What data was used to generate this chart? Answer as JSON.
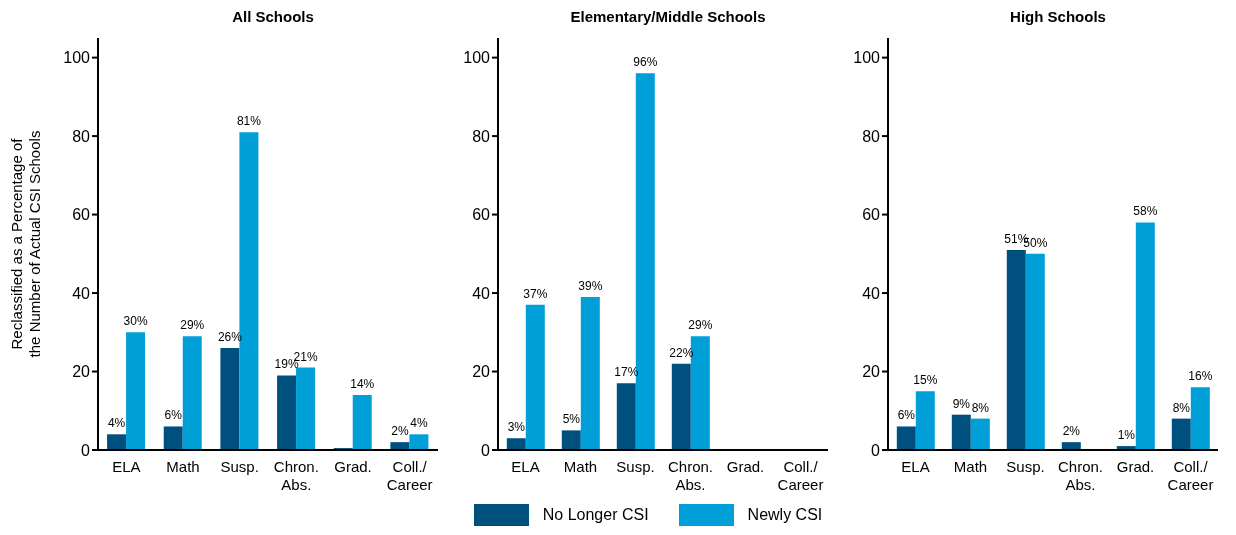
{
  "chart_data": [
    {
      "type": "bar",
      "title": "All Schools",
      "ylabel": "Reclassified as a Percentage of\nthe Number of Actual CSI Schools",
      "categories": [
        "ELA",
        "Math",
        "Susp.",
        "Chron.\nAbs.",
        "Grad.",
        "Coll./\nCareer"
      ],
      "ylim": [
        0,
        105
      ],
      "yticks": [
        0,
        20,
        40,
        60,
        80,
        100
      ],
      "legend": "bottom",
      "series": [
        {
          "name": "No Longer CSI",
          "color": "#00507f",
          "values": [
            4,
            6,
            26,
            19,
            0.5,
            2
          ],
          "value_labels": [
            "4%",
            "6%",
            "26%",
            "19%",
            null,
            "2%"
          ]
        },
        {
          "name": "Newly CSI",
          "color": "#009fd7",
          "values": [
            30,
            29,
            81,
            21,
            14,
            4
          ],
          "value_labels": [
            "30%",
            "29%",
            "81%",
            "21%",
            "14%",
            "4%"
          ]
        }
      ]
    },
    {
      "type": "bar",
      "title": "Elementary/Middle Schools",
      "categories": [
        "ELA",
        "Math",
        "Susp.",
        "Chron.\nAbs.",
        "Grad.",
        "Coll./\nCareer"
      ],
      "ylim": [
        0,
        105
      ],
      "yticks": [
        0,
        20,
        40,
        60,
        80,
        100
      ],
      "series": [
        {
          "color": "#00507f",
          "values": [
            3,
            5,
            17,
            22,
            null,
            null
          ],
          "value_labels": [
            "3%",
            "5%",
            "17%",
            "22%",
            null,
            null
          ]
        },
        {
          "color": "#009fd7",
          "values": [
            37,
            39,
            96,
            29,
            null,
            null
          ],
          "value_labels": [
            "37%",
            "39%",
            "96%",
            "29%",
            null,
            null
          ]
        }
      ]
    },
    {
      "type": "bar",
      "title": "High Schools",
      "categories": [
        "ELA",
        "Math",
        "Susp.",
        "Chron.\nAbs.",
        "Grad.",
        "Coll./\nCareer"
      ],
      "ylim": [
        0,
        105
      ],
      "yticks": [
        0,
        20,
        40,
        60,
        80,
        100
      ],
      "series": [
        {
          "color": "#00507f",
          "values": [
            6,
            9,
            51,
            2,
            1,
            8
          ],
          "value_labels": [
            "6%",
            "9%",
            "51%",
            "2%",
            "1%",
            "8%"
          ]
        },
        {
          "color": "#009fd7",
          "values": [
            15,
            8,
            50,
            null,
            58,
            16
          ],
          "value_labels": [
            "15%",
            "8%",
            "50%",
            null,
            "58%",
            "16%"
          ]
        }
      ]
    }
  ]
}
